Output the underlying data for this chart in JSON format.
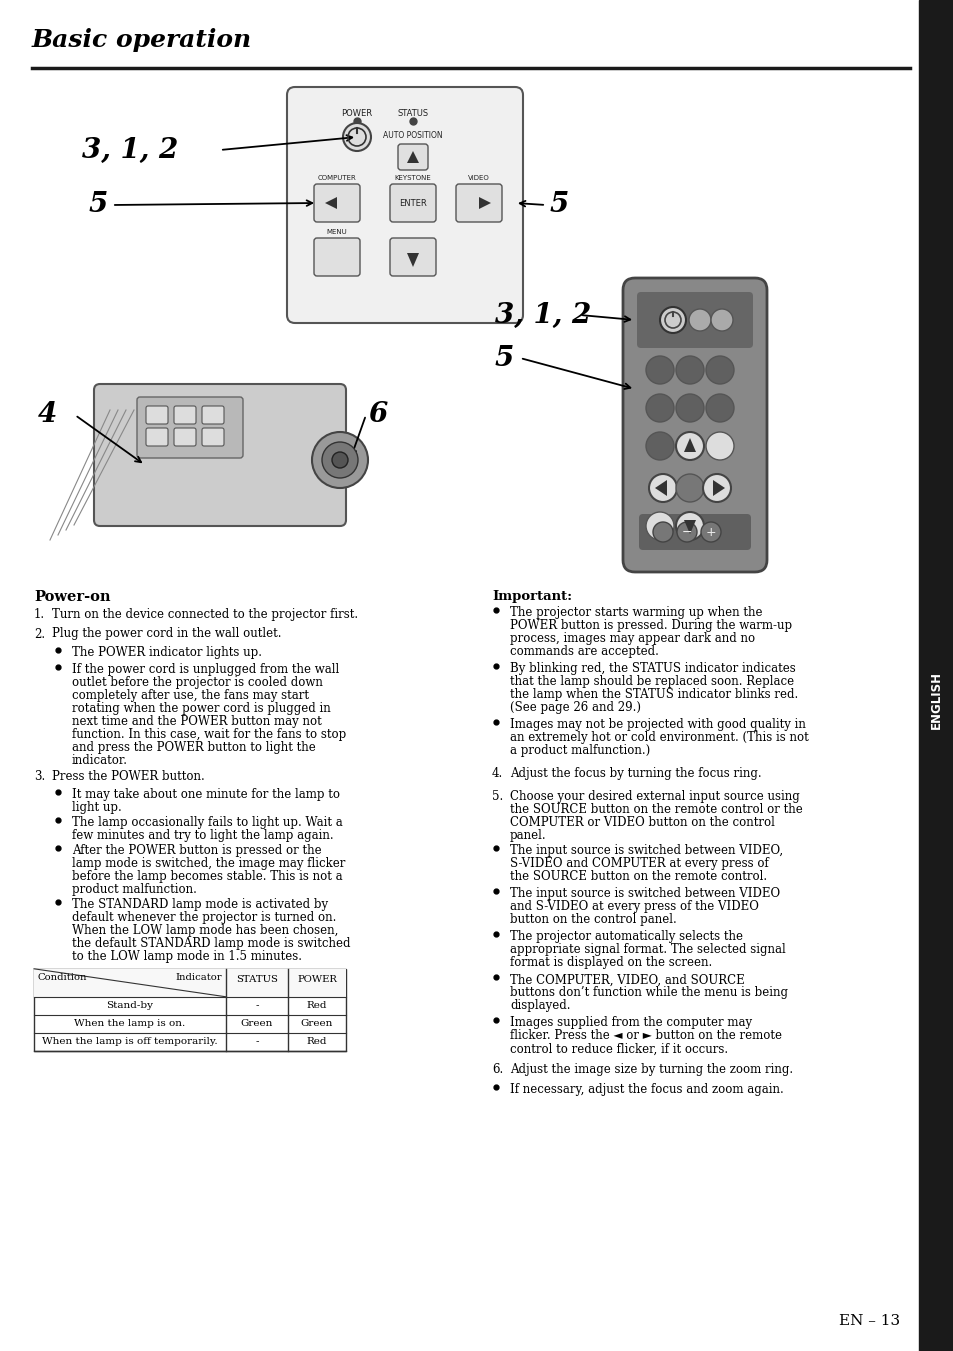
{
  "title": "Basic operation",
  "page_num": "EN – 13",
  "english_sidebar": "ENGLISH",
  "power_on_heading": "Power-on",
  "bg_color": "#ffffff",
  "text_color": "#000000",
  "sidebar_bg": "#1a1a1a",
  "sidebar_text": "#ffffff",
  "line_color": "#1a1a1a",
  "step1": "Turn on the device connected to the projector first.",
  "step2": "Plug the power cord in the wall outlet.",
  "step2_b1": "The POWER indicator lights up.",
  "step2_b2_lines": [
    "If the power cord is unplugged from the wall",
    "outlet before the projector is cooled down",
    "completely after use, the fans may start",
    "rotating when the power cord is plugged in",
    "next time and the POWER button may not",
    "function. In this case, wait for the fans to stop",
    "and press the POWER button to light the",
    "indicator."
  ],
  "step3": "Press the POWER button.",
  "step3_b1_lines": [
    "It may take about one minute for the lamp to",
    "light up."
  ],
  "step3_b2_lines": [
    "The lamp occasionally fails to light up. Wait a",
    "few minutes and try to light the lamp again."
  ],
  "step3_b3_lines": [
    "After the POWER button is pressed or the",
    "lamp mode is switched, the image may flicker",
    "before the lamp becomes stable. This is not a",
    "product malfunction."
  ],
  "step3_b4_lines": [
    "The STANDARD lamp mode is activated by",
    "default whenever the projector is turned on.",
    "When the LOW lamp mode has been chosen,",
    "the default STANDARD lamp mode is switched",
    "to the LOW lamp mode in 1.5 minutes."
  ],
  "imp_heading": "Important:",
  "imp_b1_lines": [
    "The projector starts warming up when the",
    "POWER button is pressed. During the warm-up",
    "process, images may appear dark and no",
    "commands are accepted."
  ],
  "imp_b2_lines": [
    "By blinking red, the STATUS indicator indicates",
    "that the lamp should be replaced soon. Replace",
    "the lamp when the STATUS indicator blinks red.",
    "(See page 26 and 29.)"
  ],
  "imp_b3_lines": [
    "Images may not be projected with good quality in",
    "an extremely hot or cold environment. (This is not",
    "a product malfunction.)"
  ],
  "step4": "Adjust the focus by turning the focus ring.",
  "step5": "Choose your desired external input source using",
  "step5b": "the SOURCE button on the remote control or the",
  "step5c": "COMPUTER or VIDEO button on the control",
  "step5d": "panel.",
  "step5_b1_lines": [
    "The input source is switched between VIDEO,",
    "S-VIDEO and COMPUTER at every press of",
    "the SOURCE button on the remote control."
  ],
  "step5_b2_lines": [
    "The input source is switched between VIDEO",
    "and S-VIDEO at every press of the VIDEO",
    "button on the control panel."
  ],
  "step5_b3_lines": [
    "The projector automatically selects the",
    "appropriate signal format. The selected signal",
    "format is displayed on the screen."
  ],
  "step5_b4_lines": [
    "The COMPUTER, VIDEO, and SOURCE",
    "buttons don’t function while the menu is being",
    "displayed."
  ],
  "step5_b5_lines": [
    "Images supplied from the computer may",
    "flicker. Press the ◄ or ► button on the remote",
    "control to reduce flicker, if it occurs."
  ],
  "step6": "Adjust the image size by turning the zoom ring.",
  "step6_b1": "If necessary, adjust the focus and zoom again."
}
